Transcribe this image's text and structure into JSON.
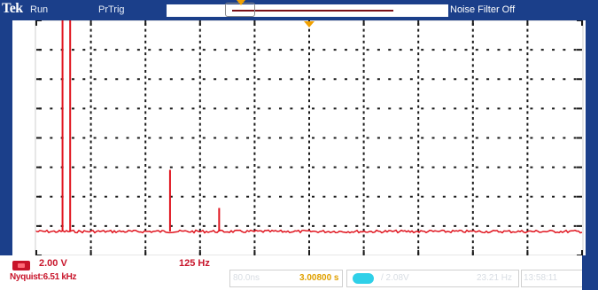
{
  "topbar": {
    "brand": "Tek",
    "run_state": "Run",
    "trigger_state": "PrTrig",
    "noise_filter": "Noise Filter Off"
  },
  "ch1": {
    "scale": "2.00 V",
    "frequency": "125 Hz",
    "nyquist": "Nyquist:6.51 kHz"
  },
  "timebase": {
    "sample_rate": "80.0ns",
    "position": "3.00800 s"
  },
  "trigger": {
    "level": "/ 2.08V",
    "record_length": "23.21 Hz"
  },
  "datetime": "13:58:11",
  "colors": {
    "bar": "#1b3f8a",
    "grid": "#1a1a1a",
    "trace": "#e0141e",
    "ch1": "#c8142a",
    "trigger": "#2fd0e8",
    "marker": "#f0a000"
  },
  "spectrum": {
    "noise_floor_division": 0.15,
    "peaks": [
      {
        "frequency_division": 0.48,
        "amplitude_division": 8.0
      },
      {
        "frequency_division": 0.62,
        "amplitude_division": 8.0
      },
      {
        "frequency_division": 2.45,
        "amplitude_division": 2.1
      },
      {
        "frequency_division": 3.35,
        "amplitude_division": 0.8
      }
    ]
  }
}
